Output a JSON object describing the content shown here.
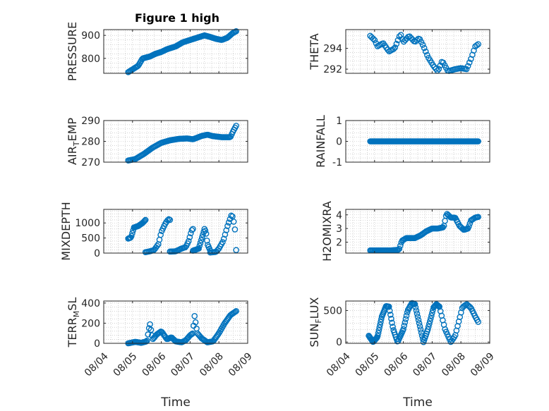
{
  "figure": {
    "title": "Figure 1 high"
  },
  "colors": {
    "marker": "#0072BD",
    "axis": "#262626",
    "grid": "#b8b8b8",
    "background": "#ffffff"
  },
  "chart_data": [
    {
      "id": "pressure",
      "type": "scatter",
      "title": "Figure 1 high",
      "xlabel": "",
      "ylabel": "PRESSURE",
      "ylim": [
        735,
        925
      ],
      "yticks": [
        "800",
        "900"
      ],
      "ytick_values": [
        800,
        900
      ],
      "xlim": [
        0,
        5
      ],
      "grid": true,
      "show_xticks": false,
      "keyframes": [
        [
          0.85,
          740
        ],
        [
          1.0,
          752
        ],
        [
          1.2,
          768
        ],
        [
          1.35,
          800
        ],
        [
          1.6,
          808
        ],
        [
          1.8,
          820
        ],
        [
          2.0,
          828
        ],
        [
          2.2,
          840
        ],
        [
          2.5,
          852
        ],
        [
          2.75,
          870
        ],
        [
          3.0,
          880
        ],
        [
          3.2,
          888
        ],
        [
          3.5,
          900
        ],
        [
          3.7,
          893
        ],
        [
          3.9,
          885
        ],
        [
          4.1,
          880
        ],
        [
          4.3,
          890
        ],
        [
          4.48,
          910
        ],
        [
          4.6,
          918
        ]
      ],
      "num_points": 110
    },
    {
      "id": "theta",
      "type": "scatter",
      "title": "",
      "xlabel": "",
      "ylabel": "THETA",
      "ylim": [
        291.6,
        295.8
      ],
      "yticks": [
        "292",
        "294"
      ],
      "ytick_values": [
        292,
        294
      ],
      "xlim": [
        0,
        5
      ],
      "grid": true,
      "show_xticks": false,
      "keyframes": [
        [
          0.85,
          295.2
        ],
        [
          1.0,
          294.8
        ],
        [
          1.1,
          294.2
        ],
        [
          1.3,
          294.5
        ],
        [
          1.5,
          293.7
        ],
        [
          1.7,
          294.0
        ],
        [
          1.9,
          295.4
        ],
        [
          2.0,
          294.6
        ],
        [
          2.2,
          295.2
        ],
        [
          2.4,
          294.6
        ],
        [
          2.55,
          295.0
        ],
        [
          2.7,
          294.2
        ],
        [
          2.85,
          293.2
        ],
        [
          3.05,
          292.3
        ],
        [
          3.2,
          291.8
        ],
        [
          3.35,
          292.8
        ],
        [
          3.55,
          291.8
        ],
        [
          3.8,
          292.0
        ],
        [
          4.0,
          292.1
        ],
        [
          4.2,
          292.0
        ],
        [
          4.35,
          293.0
        ],
        [
          4.5,
          294.2
        ],
        [
          4.6,
          294.4
        ]
      ],
      "num_points": 75
    },
    {
      "id": "air_temp",
      "type": "scatter",
      "title": "",
      "xlabel": "",
      "ylabel_main": "AIR",
      "ylabel_sub": "T",
      "ylabel_rest": "EMP",
      "ylim": [
        270,
        290
      ],
      "yticks": [
        "270",
        "280",
        "290"
      ],
      "ytick_values": [
        270,
        280,
        290
      ],
      "xlim": [
        0,
        5
      ],
      "grid": true,
      "show_xticks": false,
      "keyframes": [
        [
          0.85,
          270.8
        ],
        [
          1.1,
          271.5
        ],
        [
          1.4,
          274.0
        ],
        [
          1.7,
          277.0
        ],
        [
          2.0,
          279.3
        ],
        [
          2.3,
          280.5
        ],
        [
          2.6,
          281.2
        ],
        [
          2.9,
          281.4
        ],
        [
          3.1,
          281.0
        ],
        [
          3.4,
          282.6
        ],
        [
          3.6,
          283.2
        ],
        [
          3.8,
          282.5
        ],
        [
          4.1,
          282.0
        ],
        [
          4.4,
          282.0
        ],
        [
          4.5,
          285.0
        ],
        [
          4.6,
          287.5
        ]
      ],
      "num_points": 100
    },
    {
      "id": "rainfall",
      "type": "scatter",
      "title": "",
      "xlabel": "",
      "ylabel": "RAINFALL",
      "ylim": [
        -1,
        1
      ],
      "yticks": [
        "-1",
        "0",
        "1"
      ],
      "ytick_values": [
        -1,
        0,
        1
      ],
      "xlim": [
        0,
        5
      ],
      "grid": true,
      "show_xticks": false,
      "keyframes": [
        [
          0.85,
          0
        ],
        [
          4.6,
          0
        ]
      ],
      "num_points": 130
    },
    {
      "id": "mixdepth",
      "type": "scatter",
      "title": "",
      "xlabel": "",
      "ylabel": "MIXDEPTH",
      "ylim": [
        0,
        1450
      ],
      "yticks": [
        "0",
        "500",
        "1000"
      ],
      "ytick_values": [
        0,
        500,
        1000
      ],
      "xlim": [
        0,
        5
      ],
      "grid": true,
      "show_xticks": false,
      "segments": [
        [
          [
            0.85,
            480
          ],
          [
            0.95,
            520
          ],
          [
            1.05,
            850
          ],
          [
            1.2,
            900
          ],
          [
            1.35,
            1000
          ],
          [
            1.45,
            1100
          ]
        ],
        [
          [
            1.45,
            30
          ],
          [
            1.6,
            60
          ],
          [
            1.75,
            100
          ],
          [
            1.9,
            300
          ],
          [
            2.0,
            700
          ],
          [
            2.15,
            1000
          ],
          [
            2.25,
            1130
          ],
          [
            2.3,
            1100
          ]
        ],
        [
          [
            2.3,
            50
          ],
          [
            2.5,
            60
          ],
          [
            2.7,
            150
          ],
          [
            2.85,
            200
          ],
          [
            2.95,
            400
          ],
          [
            3.05,
            750
          ],
          [
            3.1,
            800
          ]
        ],
        [
          [
            3.1,
            80
          ],
          [
            3.3,
            150
          ],
          [
            3.5,
            800
          ],
          [
            3.55,
            700
          ],
          [
            3.6,
            300
          ],
          [
            3.7,
            80
          ]
        ],
        [
          [
            3.7,
            20
          ],
          [
            3.9,
            40
          ],
          [
            4.0,
            150
          ],
          [
            4.15,
            400
          ],
          [
            4.3,
            900
          ],
          [
            4.45,
            1300
          ],
          [
            4.55,
            900
          ],
          [
            4.6,
            100
          ]
        ]
      ],
      "num_points": 110
    },
    {
      "id": "h2omixra",
      "type": "scatter",
      "title": "",
      "xlabel": "",
      "ylabel": "H2OMIXRA",
      "ylim": [
        1.2,
        4.4
      ],
      "yticks": [
        "2",
        "3",
        "4"
      ],
      "ytick_values": [
        2,
        3,
        4
      ],
      "xlim": [
        0,
        5
      ],
      "grid": true,
      "show_xticks": false,
      "keyframes": [
        [
          0.85,
          1.4
        ],
        [
          1.2,
          1.4
        ],
        [
          1.6,
          1.4
        ],
        [
          1.85,
          1.45
        ],
        [
          1.95,
          2.1
        ],
        [
          2.1,
          2.3
        ],
        [
          2.4,
          2.3
        ],
        [
          2.6,
          2.5
        ],
        [
          2.8,
          2.8
        ],
        [
          3.0,
          3.0
        ],
        [
          3.2,
          3.0
        ],
        [
          3.4,
          3.1
        ],
        [
          3.5,
          4.1
        ],
        [
          3.65,
          3.8
        ],
        [
          3.8,
          3.8
        ],
        [
          3.95,
          3.2
        ],
        [
          4.1,
          2.9
        ],
        [
          4.25,
          3.0
        ],
        [
          4.35,
          3.6
        ],
        [
          4.5,
          3.8
        ],
        [
          4.6,
          3.85
        ]
      ],
      "num_points": 105
    },
    {
      "id": "terr_msl",
      "type": "scatter",
      "title": "",
      "xlabel": "Time",
      "ylabel_main": "TERR",
      "ylabel_sub": "M",
      "ylabel_rest": "SL",
      "ylim": [
        0,
        420
      ],
      "yticks": [
        "0",
        "200",
        "400"
      ],
      "ytick_values": [
        0,
        200,
        400
      ],
      "xlim": [
        0,
        5
      ],
      "grid": true,
      "show_xticks": true,
      "xticks": [
        "08/04",
        "08/05",
        "08/06",
        "08/07",
        "08/08",
        "08/09"
      ],
      "xtick_values": [
        0,
        1,
        2,
        3,
        4,
        5
      ],
      "keyframes": [
        [
          0.85,
          0
        ],
        [
          1.1,
          15
        ],
        [
          1.3,
          5
        ],
        [
          1.5,
          20
        ],
        [
          1.6,
          200
        ],
        [
          1.7,
          40
        ],
        [
          1.85,
          90
        ],
        [
          2.0,
          120
        ],
        [
          2.2,
          40
        ],
        [
          2.35,
          60
        ],
        [
          2.5,
          20
        ],
        [
          2.7,
          10
        ],
        [
          2.85,
          30
        ],
        [
          3.0,
          80
        ],
        [
          3.1,
          100
        ],
        [
          3.15,
          280
        ],
        [
          3.25,
          100
        ],
        [
          3.4,
          50
        ],
        [
          3.6,
          10
        ],
        [
          3.8,
          20
        ],
        [
          4.0,
          100
        ],
        [
          4.2,
          200
        ],
        [
          4.4,
          280
        ],
        [
          4.5,
          300
        ],
        [
          4.6,
          320
        ]
      ],
      "num_points": 110
    },
    {
      "id": "sun_flux",
      "type": "scatter",
      "title": "",
      "xlabel": "Time",
      "ylabel_main": "SUN",
      "ylabel_sub": "F",
      "ylabel_rest": "LUX",
      "ylim": [
        -20,
        650
      ],
      "yticks": [
        "0",
        "500"
      ],
      "ytick_values": [
        0,
        500
      ],
      "xlim": [
        0,
        5
      ],
      "grid": true,
      "show_xticks": true,
      "xticks": [
        "08/04",
        "08/05",
        "08/06",
        "08/07",
        "08/08",
        "08/09"
      ],
      "xtick_values": [
        0,
        1,
        2,
        3,
        4,
        5
      ],
      "segments": [
        [
          [
            0.8,
            100
          ],
          [
            0.95,
            0
          ],
          [
            1.1,
            80
          ],
          [
            1.25,
            400
          ],
          [
            1.4,
            570
          ],
          [
            1.5,
            560
          ]
        ],
        [
          [
            1.5,
            560
          ],
          [
            1.65,
            200
          ],
          [
            1.8,
            0
          ],
          [
            2.0,
            200
          ],
          [
            2.15,
            500
          ],
          [
            2.3,
            620
          ],
          [
            2.4,
            600
          ]
        ],
        [
          [
            2.4,
            600
          ],
          [
            2.55,
            300
          ],
          [
            2.7,
            0
          ],
          [
            2.85,
            200
          ],
          [
            3.05,
            550
          ],
          [
            3.15,
            600
          ],
          [
            3.25,
            560
          ]
        ],
        [
          [
            3.25,
            560
          ],
          [
            3.45,
            200
          ],
          [
            3.65,
            0
          ],
          [
            3.8,
            100
          ],
          [
            4.05,
            550
          ],
          [
            4.2,
            600
          ],
          [
            4.35,
            540
          ],
          [
            4.5,
            400
          ],
          [
            4.6,
            320
          ]
        ]
      ],
      "num_points": 140
    }
  ]
}
